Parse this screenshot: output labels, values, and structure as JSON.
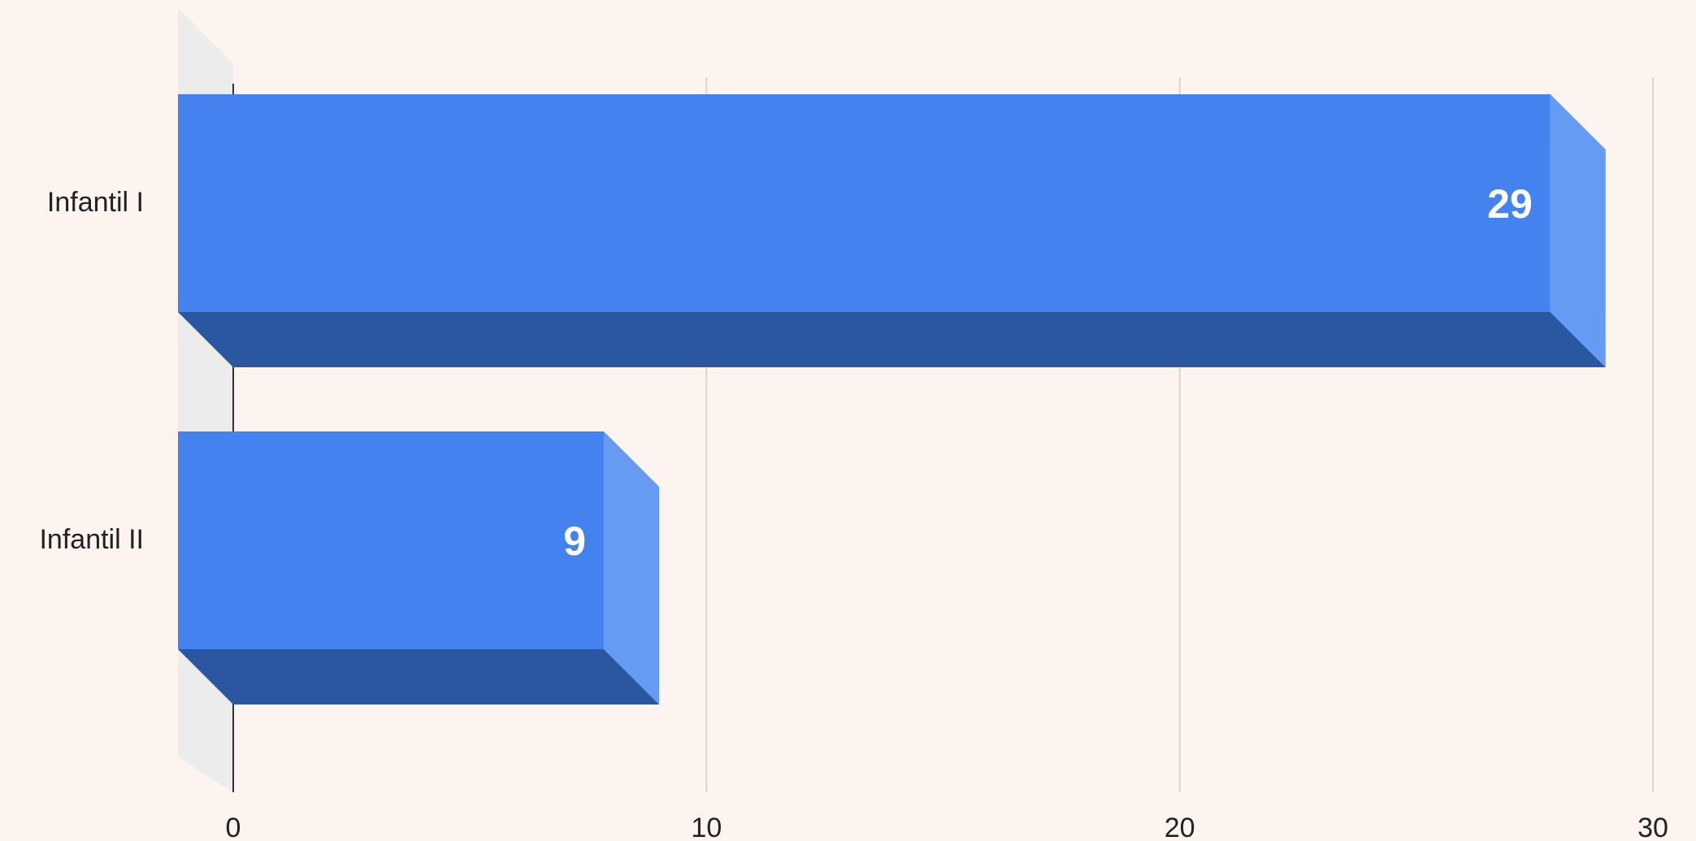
{
  "chart_data": {
    "type": "bar",
    "orientation": "horizontal",
    "style": "3d",
    "categories": [
      "Infantil I",
      "Infantil II"
    ],
    "values": [
      29,
      9
    ],
    "data_labels": [
      "29",
      "9"
    ],
    "title": "",
    "xlabel": "",
    "ylabel": "",
    "xlim": [
      0,
      30
    ],
    "ticks": [
      0,
      10,
      20,
      30
    ],
    "tick_labels": [
      "0",
      "10",
      "20",
      "30"
    ],
    "grid": true,
    "legend": "none",
    "colors": {
      "background": "#fdf3ef",
      "bar_front": "#4382ef",
      "bar_side": "#659bf3",
      "bar_bottom": "#2a579f",
      "wall": "#ececec",
      "gridline": "#d9d4d2",
      "axis": "#333333"
    }
  }
}
